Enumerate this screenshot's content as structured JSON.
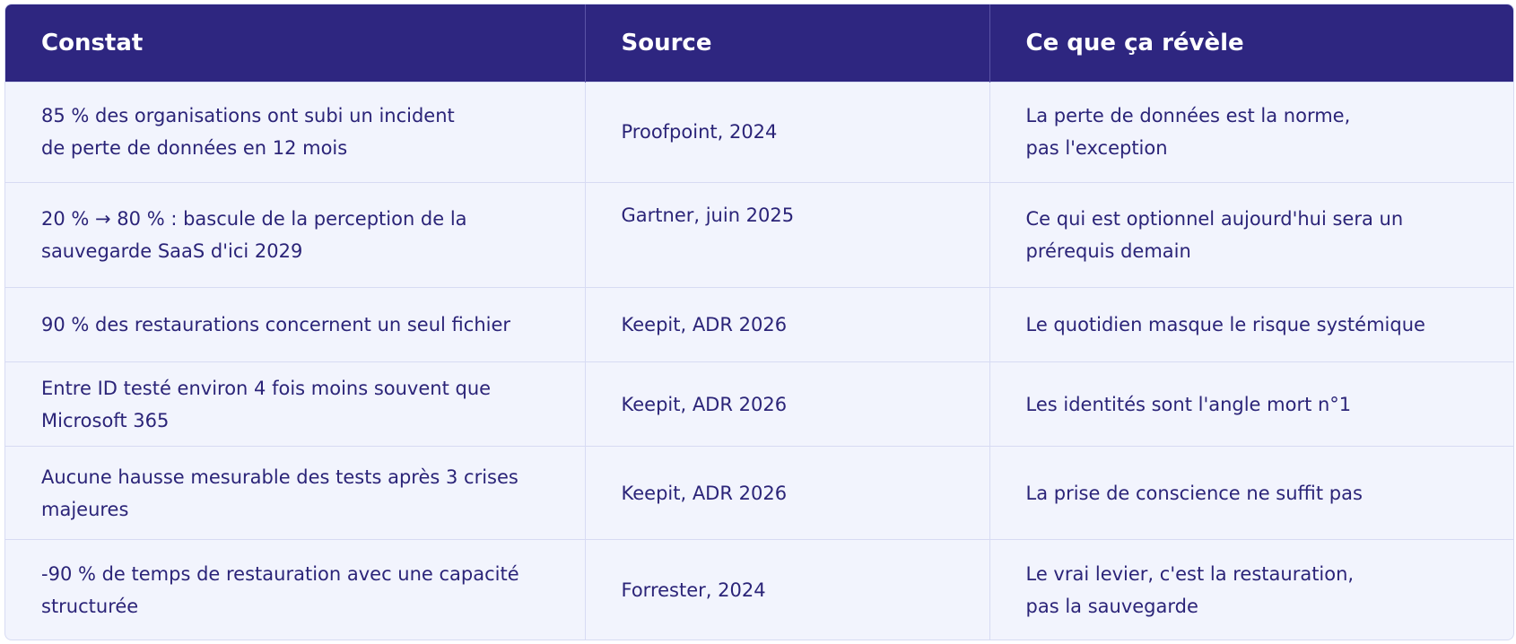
{
  "table": {
    "headers": [
      "Constat",
      "Source",
      "Ce que ça révèle"
    ],
    "rows": [
      {
        "constat": [
          "85 % des organisations ont subi un incident",
          "de perte de données en 12 mois"
        ],
        "source": "Proofpoint, 2024",
        "revele": [
          "La perte de données est la norme,",
          "pas l'exception"
        ]
      },
      {
        "constat": [
          "20 % → 80 % : bascule de la perception de la",
          "sauvegarde SaaS d'ici 2029"
        ],
        "source": "Gartner, juin 2025",
        "revele": [
          "Ce qui est optionnel aujourd'hui sera un",
          "prérequis demain"
        ]
      },
      {
        "constat": [
          "90 % des restaurations concernent un seul fichier"
        ],
        "source": "Keepit, ADR 2026",
        "revele": [
          "Le quotidien masque le risque systémique"
        ]
      },
      {
        "constat": [
          "Entre ID testé environ 4 fois moins souvent que",
          "Microsoft 365"
        ],
        "source": "Keepit, ADR 2026",
        "revele": [
          "Les identités sont l'angle mort n°1"
        ]
      },
      {
        "constat": [
          "Aucune hausse mesurable des tests après 3 crises",
          "majeures"
        ],
        "source": "Keepit, ADR 2026",
        "revele": [
          "La prise de conscience ne suffit pas"
        ]
      },
      {
        "constat": [
          "-90 % de temps de restauration avec une capacité",
          "structurée"
        ],
        "source": "Forrester, 2024",
        "revele": [
          "Le vrai levier, c'est la restauration,",
          "pas la sauvegarde"
        ]
      }
    ]
  }
}
